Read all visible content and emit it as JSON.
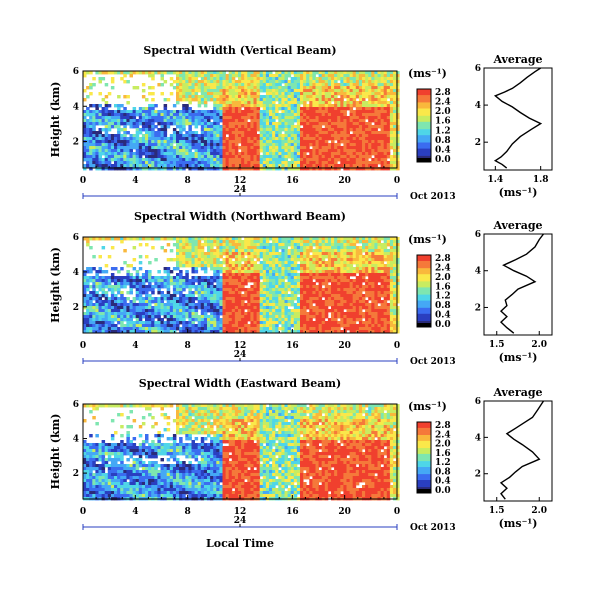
{
  "chart_data": [
    {
      "type": "heatmap",
      "title": "Spectral Width (Vertical Beam)",
      "ylabel": "Height (km)",
      "x_ticks": [
        "0",
        "4",
        "8",
        "12",
        "16",
        "20",
        "0"
      ],
      "xlim": [
        0,
        24
      ],
      "ylim": [
        0.5,
        6
      ],
      "y_ticks": [
        "2",
        "4",
        "6"
      ],
      "date_label": "Oct 2013",
      "date_marker": "24",
      "colorbar": {
        "unit": "(ms⁻¹)",
        "ticks": [
          "0.0",
          "0.4",
          "0.8",
          "1.2",
          "1.6",
          "2.0",
          "2.4",
          "2.8"
        ]
      },
      "profile": {
        "title": "Average",
        "xlabel": "(ms⁻¹)",
        "x_ticks": [
          "1.4",
          "1.8"
        ],
        "xlim": [
          1.3,
          1.9
        ],
        "y_ticks": [
          "2",
          "4",
          "6"
        ],
        "ylim": [
          0.5,
          6
        ],
        "points": [
          [
            1.5,
            0.6
          ],
          [
            1.46,
            0.8
          ],
          [
            1.4,
            1.0
          ],
          [
            1.45,
            1.2
          ],
          [
            1.5,
            1.5
          ],
          [
            1.55,
            1.9
          ],
          [
            1.62,
            2.3
          ],
          [
            1.72,
            2.7
          ],
          [
            1.8,
            3.0
          ],
          [
            1.7,
            3.3
          ],
          [
            1.62,
            3.6
          ],
          [
            1.55,
            3.9
          ],
          [
            1.46,
            4.2
          ],
          [
            1.4,
            4.5
          ],
          [
            1.48,
            4.7
          ],
          [
            1.55,
            4.9
          ],
          [
            1.62,
            5.2
          ],
          [
            1.68,
            5.5
          ],
          [
            1.75,
            5.8
          ],
          [
            1.8,
            6.0
          ]
        ]
      }
    },
    {
      "type": "heatmap",
      "title": "Spectral Width (Northward Beam)",
      "ylabel": "Height (km)",
      "x_ticks": [
        "0",
        "4",
        "8",
        "12",
        "16",
        "20",
        "0"
      ],
      "xlim": [
        0,
        24
      ],
      "ylim": [
        0.5,
        6
      ],
      "y_ticks": [
        "2",
        "4",
        "6"
      ],
      "date_label": "Oct 2013",
      "date_marker": "24",
      "colorbar": {
        "unit": "(ms⁻¹)",
        "ticks": [
          "0.0",
          "0.4",
          "0.8",
          "1.2",
          "1.6",
          "2.0",
          "2.4",
          "2.8"
        ]
      },
      "profile": {
        "title": "Average",
        "xlabel": "(ms⁻¹)",
        "x_ticks": [
          "1.5",
          "2.0"
        ],
        "xlim": [
          1.35,
          2.15
        ],
        "y_ticks": [
          "2",
          "4",
          "6"
        ],
        "ylim": [
          0.5,
          6
        ],
        "points": [
          [
            1.7,
            0.6
          ],
          [
            1.62,
            0.9
          ],
          [
            1.55,
            1.2
          ],
          [
            1.62,
            1.5
          ],
          [
            1.55,
            1.8
          ],
          [
            1.62,
            2.1
          ],
          [
            1.6,
            2.4
          ],
          [
            1.68,
            2.7
          ],
          [
            1.75,
            3.0
          ],
          [
            1.95,
            3.4
          ],
          [
            1.85,
            3.7
          ],
          [
            1.7,
            4.0
          ],
          [
            1.58,
            4.3
          ],
          [
            1.72,
            4.6
          ],
          [
            1.85,
            4.9
          ],
          [
            1.95,
            5.3
          ],
          [
            2.0,
            5.7
          ],
          [
            2.05,
            6.0
          ]
        ]
      }
    },
    {
      "type": "heatmap",
      "title": "Spectral Width (Eastward Beam)",
      "ylabel": "Height (km)",
      "x_ticks": [
        "0",
        "4",
        "8",
        "12",
        "16",
        "20",
        "0"
      ],
      "xlim": [
        0,
        24
      ],
      "ylim": [
        0.5,
        6
      ],
      "y_ticks": [
        "2",
        "4",
        "6"
      ],
      "date_label": "Oct 2013",
      "date_marker": "24",
      "colorbar": {
        "unit": "(ms⁻¹)",
        "ticks": [
          "0.0",
          "0.4",
          "0.8",
          "1.2",
          "1.6",
          "2.0",
          "2.4",
          "2.8"
        ]
      },
      "profile": {
        "title": "Average",
        "xlabel": "(ms⁻¹)",
        "x_ticks": [
          "1.5",
          "2.0"
        ],
        "xlim": [
          1.35,
          2.15
        ],
        "y_ticks": [
          "2",
          "4",
          "6"
        ],
        "ylim": [
          0.5,
          6
        ],
        "points": [
          [
            1.6,
            0.6
          ],
          [
            1.55,
            0.9
          ],
          [
            1.62,
            1.2
          ],
          [
            1.55,
            1.5
          ],
          [
            1.65,
            1.8
          ],
          [
            1.72,
            2.1
          ],
          [
            1.8,
            2.4
          ],
          [
            2.0,
            2.8
          ],
          [
            1.92,
            3.2
          ],
          [
            1.8,
            3.6
          ],
          [
            1.7,
            3.9
          ],
          [
            1.62,
            4.2
          ],
          [
            1.72,
            4.5
          ],
          [
            1.82,
            4.8
          ],
          [
            1.92,
            5.1
          ],
          [
            1.98,
            5.5
          ],
          [
            2.05,
            6.0
          ]
        ]
      }
    }
  ],
  "footer": {
    "xlabel": "Local Time"
  },
  "colors": {
    "colormap": [
      "#2b2b7a",
      "#2a3fc0",
      "#3b6cf0",
      "#45a8f5",
      "#4fd6e8",
      "#7ee6b0",
      "#c8ec60",
      "#fae84a",
      "#f9b83c",
      "#f5793a",
      "#f0402e"
    ],
    "colorbar_bottom": "#000000"
  }
}
